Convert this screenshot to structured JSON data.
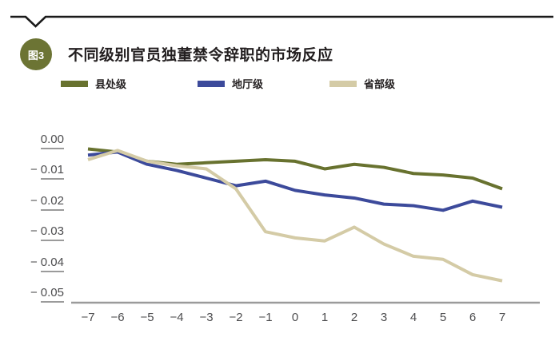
{
  "figure": {
    "badge_label": "图3",
    "title": "不同级别官员独董禁令辞职的市场反应"
  },
  "legend": [
    {
      "label": "县处级",
      "color": "#68722f"
    },
    {
      "label": "地厅级",
      "color": "#3c4a9b"
    },
    {
      "label": "省部级",
      "color": "#d4cba6"
    }
  ],
  "colors": {
    "top_rule": "#1a1a1a",
    "badge_background": "#6c7434",
    "axis_line": "#9b9b9b",
    "tick_text": "#4d4d4f",
    "title_text": "#231f20"
  },
  "chart_data": {
    "type": "line",
    "title": "不同级别官员独董禁令辞职的市场反应",
    "xlabel": "",
    "ylabel": "",
    "x": [
      -7,
      -6,
      -5,
      -4,
      -3,
      -2,
      -1,
      0,
      1,
      2,
      3,
      4,
      5,
      6,
      7
    ],
    "xtick_labels": [
      "−7",
      "−6",
      "−5",
      "−4",
      "−3",
      "−2",
      "−1",
      "0",
      "1",
      "2",
      "3",
      "4",
      "5",
      "6",
      "7"
    ],
    "yticks": [
      0.0,
      -0.01,
      -0.02,
      -0.03,
      -0.04,
      -0.05
    ],
    "ytick_labels": [
      "0.00",
      "−0.01",
      "−0.02",
      "−0.03",
      "−0.04",
      "−0.05"
    ],
    "ylim": [
      -0.0532,
      0.0015
    ],
    "grid": false,
    "legend_position": "top",
    "series": [
      {
        "name": "县处级",
        "color": "#68722f",
        "values": [
          -0.003,
          -0.004,
          -0.007,
          -0.008,
          -0.0075,
          -0.007,
          -0.0065,
          -0.007,
          -0.0095,
          -0.008,
          -0.009,
          -0.011,
          -0.0115,
          -0.0125,
          -0.016
        ]
      },
      {
        "name": "地厅级",
        "color": "#3c4a9b",
        "values": [
          -0.005,
          -0.004,
          -0.008,
          -0.01,
          -0.0125,
          -0.015,
          -0.0135,
          -0.0165,
          -0.018,
          -0.019,
          -0.021,
          -0.0215,
          -0.023,
          -0.02,
          -0.022
        ]
      },
      {
        "name": "省部级",
        "color": "#d4cba6",
        "values": [
          -0.0065,
          -0.0035,
          -0.007,
          -0.0085,
          -0.0095,
          -0.016,
          -0.03,
          -0.032,
          -0.033,
          -0.0285,
          -0.034,
          -0.038,
          -0.039,
          -0.044,
          -0.046
        ]
      }
    ]
  }
}
